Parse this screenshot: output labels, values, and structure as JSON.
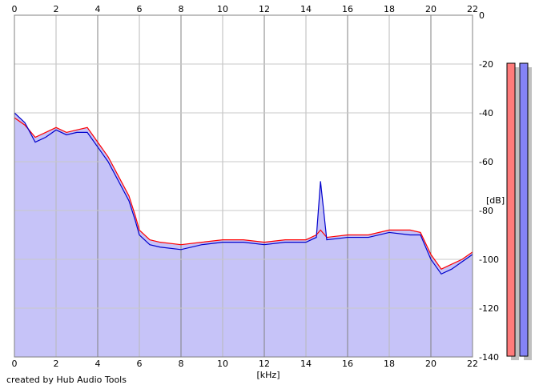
{
  "chart_data": {
    "type": "line",
    "xlabel": "[kHz]",
    "ylabel": "[dB]",
    "xlim": [
      0,
      22
    ],
    "ylim": [
      -140,
      0
    ],
    "x_ticks": [
      0,
      2,
      4,
      6,
      8,
      10,
      12,
      14,
      16,
      18,
      20,
      22
    ],
    "y_ticks": [
      0,
      -20,
      -40,
      -60,
      -80,
      -100,
      -120,
      -140
    ],
    "grid": true,
    "fill_color": "#c6c3f8",
    "series": [
      {
        "color": "#ff0000",
        "x": [
          0,
          0.5,
          1,
          1.5,
          2,
          2.5,
          3,
          3.5,
          4,
          4.5,
          5,
          5.5,
          5.8,
          6,
          6.5,
          7,
          8,
          9,
          10,
          11,
          12,
          13,
          14,
          14.5,
          14.7,
          15,
          16,
          17,
          18,
          19,
          19.5,
          20,
          20.5,
          21,
          21.5,
          22
        ],
        "y": [
          -42,
          -45,
          -50,
          -48,
          -46,
          -48,
          -47,
          -46,
          -52,
          -58,
          -66,
          -74,
          -82,
          -88,
          -92,
          -93,
          -94,
          -93,
          -92,
          -92,
          -93,
          -92,
          -92,
          -90,
          -88,
          -91,
          -90,
          -90,
          -88,
          -88,
          -89,
          -98,
          -104,
          -102,
          -100,
          -97
        ]
      },
      {
        "color": "#0000cc",
        "x": [
          0,
          0.5,
          1,
          1.5,
          2,
          2.5,
          3,
          3.5,
          4,
          4.5,
          5,
          5.5,
          5.8,
          6,
          6.5,
          7,
          8,
          9,
          10,
          11,
          12,
          13,
          14,
          14.5,
          14.7,
          15,
          16,
          17,
          18,
          19,
          19.5,
          20,
          20.5,
          21,
          21.5,
          22
        ],
        "y": [
          -40,
          -44,
          -52,
          -50,
          -47,
          -49,
          -48,
          -48,
          -54,
          -60,
          -68,
          -76,
          -84,
          -90,
          -94,
          -95,
          -96,
          -94,
          -93,
          -93,
          -94,
          -93,
          -93,
          -91,
          -68,
          -92,
          -91,
          -91,
          -89,
          -90,
          -90,
          -100,
          -106,
          -104,
          -101,
          -98
        ]
      }
    ]
  },
  "meters": [
    {
      "color": "#ff7b7b"
    },
    {
      "color": "#8483f6"
    }
  ],
  "footer": {
    "credit": "created by Hub Audio Tools"
  }
}
